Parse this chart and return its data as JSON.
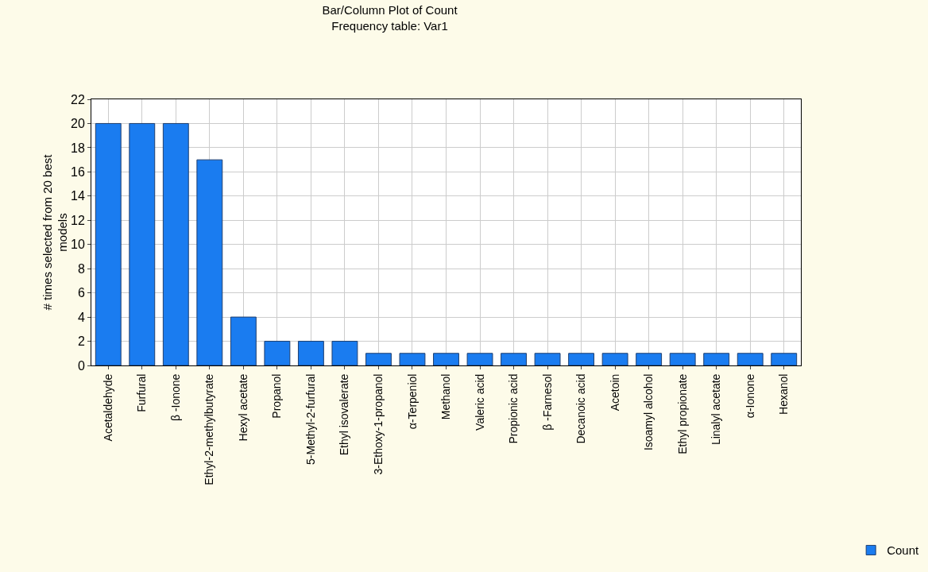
{
  "chart_data": {
    "type": "bar",
    "title": "Bar/Column Plot of Count",
    "subtitle": "Frequency table: Var1",
    "ylabel": "# times selected from 20 best models",
    "categories": [
      "Acetaldehyde",
      "Furfural",
      "β -Ionone",
      "Ethyl-2-methylbutyrate",
      "Hexyl acetate",
      "Propanol",
      "5-Methyl-2-furfural",
      "Ethyl isovalerate",
      "3-Ethoxy-1-propanol",
      "α-Terpeniol",
      "Methanol",
      "Valeric acid",
      "Propionic acid",
      "β -Farnesol",
      "Decanoic acid",
      "Acetoin",
      "Isoamyl alcohol",
      "Ethyl propionate",
      "Linalyl acetate",
      "α-Ionone",
      "Hexanol"
    ],
    "series": [
      {
        "name": "Count",
        "color": "#1a7cf0",
        "values": [
          20,
          20,
          20,
          17,
          4,
          2,
          2,
          2,
          1,
          1,
          1,
          1,
          1,
          1,
          1,
          1,
          1,
          1,
          1,
          1,
          1
        ]
      }
    ],
    "ylim": [
      0,
      22
    ],
    "yticks": [
      0,
      2,
      4,
      6,
      8,
      10,
      12,
      14,
      16,
      18,
      20,
      22
    ],
    "grid": true,
    "legend": "bottom right"
  }
}
